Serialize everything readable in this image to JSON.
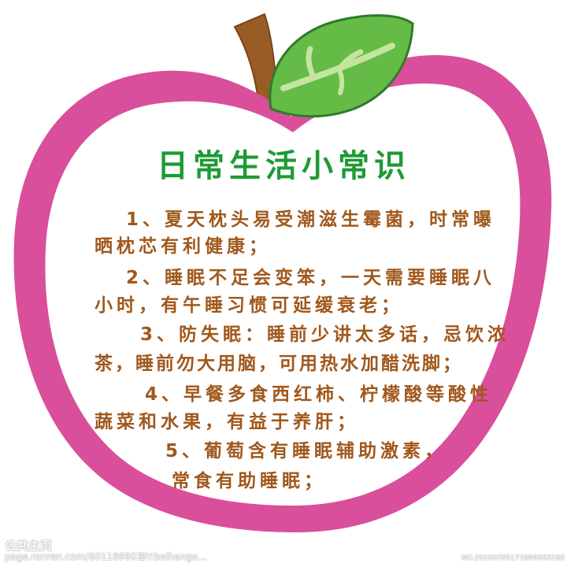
{
  "title": "日常生活小常识",
  "tips": [
    {
      "number": "1",
      "line1": "1、夏天枕头易受潮滋生霉菌，时常曝",
      "line2": "晒枕芯有利健康；"
    },
    {
      "number": "2",
      "line1": "2、睡眠不足会变笨，一天需要睡眠八",
      "line2": "小时，有午睡习惯可延缓衰老；"
    },
    {
      "number": "3",
      "line1": "3、防失眠：睡前少讲太多话，忌饮浓",
      "line2": "茶，睡前勿大用脑，可用热水加醋洗脚；"
    },
    {
      "number": "4",
      "line1": "4、早餐多食西红柿、柠檬酸等酸性",
      "line2": "蔬菜和水果，有益于养肝；"
    },
    {
      "number": "5",
      "line1": "5、葡萄含有睡眠辅助激素，",
      "line2": "常食有助睡眠；"
    }
  ],
  "watermark": {
    "logo": "公共主页",
    "url": "page.renren.com/601189903",
    "author": "BY:beihange...",
    "id": "NO.20100705171999063168"
  },
  "colors": {
    "apple_rim": "#d94f9c",
    "apple_face": "#ffffff",
    "stem": "#9a5c25",
    "leaf": "#64bb46",
    "leaf_vein": "#c4e4a0",
    "title": "#1f9a35",
    "body_text": "#a0581c"
  },
  "icons": [
    "apple-shape",
    "apple-stem",
    "apple-leaf"
  ]
}
